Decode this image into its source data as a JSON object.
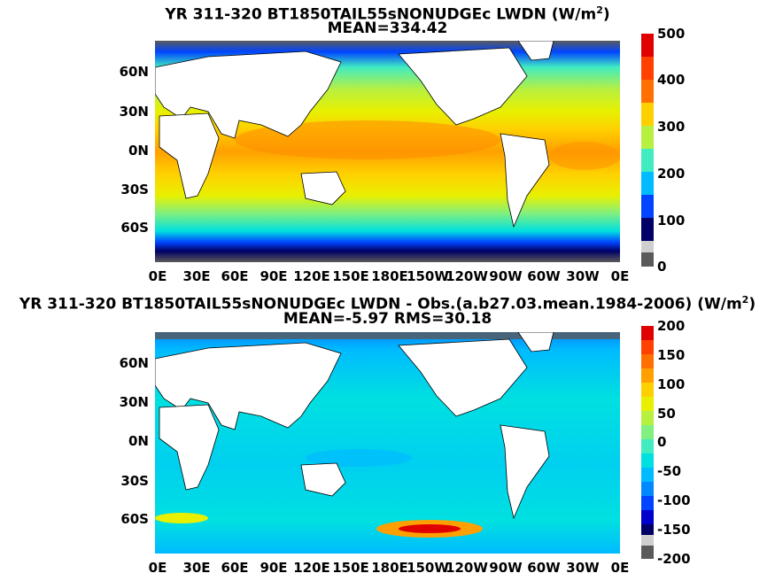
{
  "panels": [
    {
      "title_line1": "YR 311-320 BT1850TAIL55sNONUDGEc LWDN (W/m",
      "title_sup": "2",
      "title_line1_end": ")",
      "title_line2": "MEAN=334.42",
      "colorbar_ticks": [
        "500",
        "400",
        "300",
        "200",
        "100",
        "0"
      ],
      "colorbar_colors": [
        "#5a5a5a",
        "#cfcfcf",
        "#000066",
        "#0000cc",
        "#0044ff",
        "#0088ff",
        "#00bbff",
        "#00e0e0",
        "#40ecc0",
        "#80f080",
        "#b8f040",
        "#e8f000",
        "#ffd000",
        "#ffa000",
        "#ff7000",
        "#ff4000",
        "#e00000"
      ]
    },
    {
      "title_line1": "YR 311-320 BT1850TAIL55sNONUDGEc LWDN - Obs.(a.b27.03.mean.1984-2006) (W/m",
      "title_sup": "2",
      "title_line1_end": ")",
      "title_line2": "MEAN=-5.97 RMS=30.18",
      "colorbar_ticks": [
        "200",
        "150",
        "100",
        "50",
        "0",
        "-50",
        "-100",
        "-150",
        "-200"
      ],
      "colorbar_colors": [
        "#5a5a5a",
        "#cfcfcf",
        "#000066",
        "#0000cc",
        "#0044ff",
        "#0088ff",
        "#00bbff",
        "#00e0e0",
        "#40ecc0",
        "#80f080",
        "#b8f040",
        "#e8f000",
        "#ffd000",
        "#ffa000",
        "#ff7000",
        "#ff4000",
        "#e00000"
      ]
    }
  ],
  "y_ticks": [
    "60N",
    "30N",
    "0N",
    "30S",
    "60S"
  ],
  "x_ticks": [
    "0E",
    "30E",
    "60E",
    "90E",
    "120E",
    "150E",
    "180E",
    "150W",
    "120W",
    "90W",
    "60W",
    "30W",
    "0E"
  ],
  "chart_data": [
    {
      "type": "heatmap",
      "title": "YR 311-320 BT1850TAIL55sNONUDGEc LWDN (W/m2)",
      "subtitle": "MEAN=334.42",
      "xlim": [
        0,
        360
      ],
      "ylim": [
        -90,
        90
      ],
      "colorbar_range": [
        0,
        500
      ],
      "field": "downwelling longwave over ocean; ~400 tropics, ~320 mid-latitudes, <200 polar"
    },
    {
      "type": "heatmap",
      "title": "YR 311-320 BT1850TAIL55sNONUDGEc LWDN - Obs.(a.b27.03.mean.1984-2006) (W/m2)",
      "subtitle": "MEAN=-5.97 RMS=30.18",
      "xlim": [
        0,
        360
      ],
      "ylim": [
        -90,
        90
      ],
      "colorbar_range": [
        -200,
        200
      ],
      "field": "difference mostly -25 to 0; positive (~150) near 60S 150W; negative near ice edges"
    }
  ]
}
